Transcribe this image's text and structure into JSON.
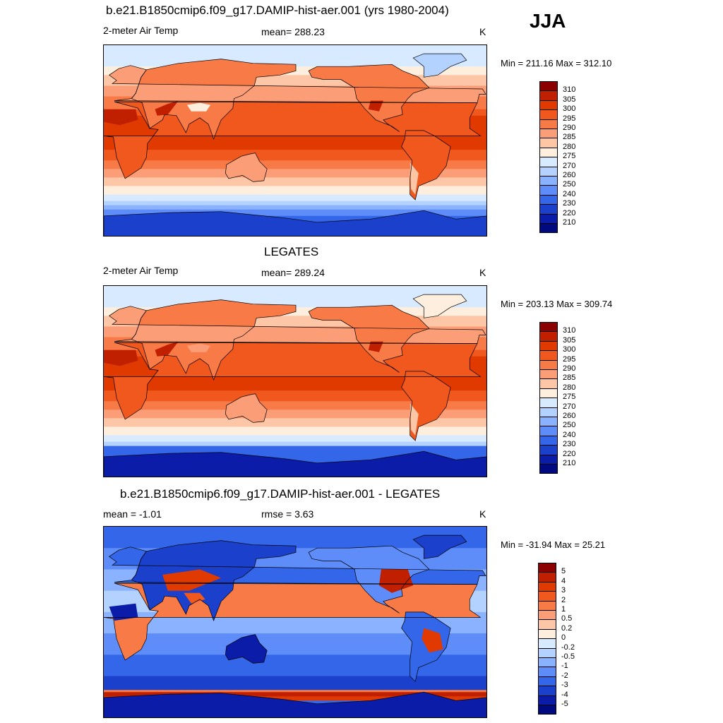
{
  "season": "JJA",
  "panels": [
    {
      "title": "b.e21.B1850cmip6.f09_g17.DAMIP-hist-aer.001 (yrs 1980-2004)",
      "left_label": "2-meter Air Temp",
      "center_label": "mean= 288.23",
      "right_label": "K",
      "minmax": "Min = 211.16 Max = 312.10",
      "kind": "temp",
      "colorbar": {
        "labels": [
          "310",
          "305",
          "300",
          "295",
          "290",
          "285",
          "280",
          "275",
          "270",
          "260",
          "250",
          "240",
          "230",
          "220",
          "210"
        ],
        "colors": [
          "#8b0000",
          "#c02000",
          "#e03a00",
          "#f0581e",
          "#f87a46",
          "#fb9e78",
          "#fdc6a6",
          "#feeedd",
          "#d8eaff",
          "#b4d2ff",
          "#8ab2ff",
          "#5e8cf8",
          "#3366e8",
          "#1a40cc",
          "#0a1ca8",
          "#000a80"
        ]
      },
      "layout_tag": "hist"
    },
    {
      "title": "LEGATES",
      "left_label": "2-meter Air Temp",
      "center_label": "mean= 289.24",
      "right_label": "K",
      "minmax": "Min = 203.13 Max = 309.74",
      "kind": "temp",
      "colorbar": {
        "labels": [
          "310",
          "305",
          "300",
          "295",
          "290",
          "285",
          "280",
          "275",
          "270",
          "260",
          "250",
          "240",
          "230",
          "220",
          "210"
        ],
        "colors": [
          "#8b0000",
          "#c02000",
          "#e03a00",
          "#f0581e",
          "#f87a46",
          "#fb9e78",
          "#fdc6a6",
          "#feeedd",
          "#d8eaff",
          "#b4d2ff",
          "#8ab2ff",
          "#5e8cf8",
          "#3366e8",
          "#1a40cc",
          "#0a1ca8",
          "#000a80"
        ]
      },
      "layout_tag": "obs"
    },
    {
      "title": "b.e21.B1850cmip6.f09_g17.DAMIP-hist-aer.001 - LEGATES",
      "left_label": "mean =  -1.01",
      "center_label": "rmse =   3.63",
      "right_label": "K",
      "minmax": "Min = -31.94 Max =  25.21",
      "kind": "diff",
      "colorbar": {
        "labels": [
          "5",
          "4",
          "3",
          "2",
          "1",
          "0.5",
          "0.2",
          "0",
          "-0.2",
          "-0.5",
          "-1",
          "-2",
          "-3",
          "-4",
          "-5"
        ],
        "colors": [
          "#8b0000",
          "#c02000",
          "#e03a00",
          "#f0581e",
          "#f87a46",
          "#fb9e78",
          "#fdc6a6",
          "#feeedd",
          "#d8eaff",
          "#b4d2ff",
          "#8ab2ff",
          "#5e8cf8",
          "#3366e8",
          "#1a40cc",
          "#0a1ca8",
          "#000a80"
        ]
      },
      "layout_tag": "diff"
    }
  ]
}
